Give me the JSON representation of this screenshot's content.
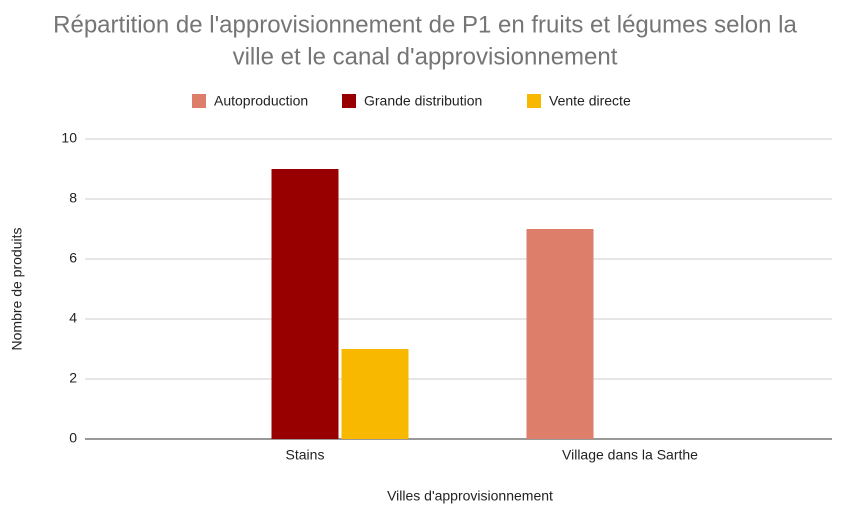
{
  "chart_data": {
    "type": "bar",
    "title": [
      "Répartition de l'approvisionnement de P1 en fruits et légumes selon la",
      "ville et le canal d'approvisionnement"
    ],
    "x_label": "Villes d'approvisionnement",
    "y_label": "Nombre de produits",
    "categories": [
      "Stains",
      "Village dans la Sarthe"
    ],
    "series": [
      {
        "name": "Autoproduction",
        "color": "#dd7e6b",
        "values": [
          0,
          7
        ]
      },
      {
        "name": "Grande distribution",
        "color": "#980000",
        "values": [
          9,
          0
        ]
      },
      {
        "name": "Vente directe",
        "color": "#f9b800",
        "values": [
          3,
          0
        ]
      }
    ],
    "ylim": [
      0,
      10
    ],
    "yticks": [
      0,
      2,
      4,
      6,
      8,
      10
    ],
    "grid": true,
    "legend": "top"
  }
}
